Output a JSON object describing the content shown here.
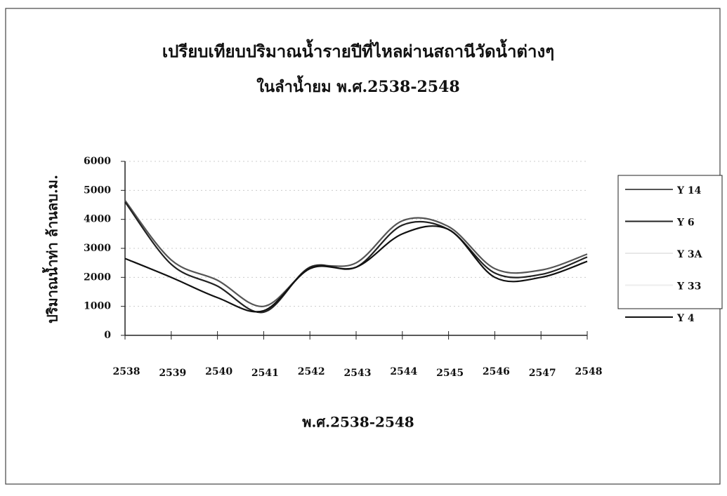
{
  "chart_data": {
    "type": "line",
    "title": "เปรียบเทียบปริมาณน้ำรายปีที่ไหลผ่านสถานีวัดน้ำต่างๆ",
    "subtitle": "ในลำน้ำยม พ.ศ.2538-2548",
    "x_label": "พ.ศ.2538-2548",
    "y_label": "ปริมาณน้ำท่า ล้านลบ.ม.",
    "categories": [
      "2538",
      "2539",
      "2540",
      "2541",
      "2542",
      "2543",
      "2544",
      "2545",
      "2546",
      "2547",
      "2548"
    ],
    "series": [
      {
        "name": "Y 14",
        "color": "#555555",
        "values": [
          4650,
          2600,
          1900,
          1000,
          2300,
          2500,
          3950,
          3750,
          2300,
          2250,
          2800
        ]
      },
      {
        "name": "Y 6",
        "color": "#222222",
        "values": [
          4600,
          2450,
          1700,
          800,
          2350,
          2350,
          3800,
          3650,
          2150,
          2100,
          2700
        ]
      },
      {
        "name": "Y 3A",
        "color": "#e8e8e8",
        "values": [
          null,
          null,
          null,
          null,
          null,
          null,
          null,
          null,
          null,
          null,
          null
        ]
      },
      {
        "name": "Y 33",
        "color": "#eeeeee",
        "values": [
          null,
          null,
          null,
          null,
          null,
          null,
          null,
          null,
          null,
          null,
          null
        ]
      },
      {
        "name": "Y 4",
        "color": "#111111",
        "values": [
          2650,
          2000,
          1300,
          850,
          2300,
          2350,
          3500,
          3650,
          2000,
          2000,
          2550
        ]
      }
    ],
    "ylim": [
      0,
      6000
    ],
    "yticks": [
      0,
      1000,
      2000,
      3000,
      4000,
      5000,
      6000
    ],
    "grid": true
  }
}
